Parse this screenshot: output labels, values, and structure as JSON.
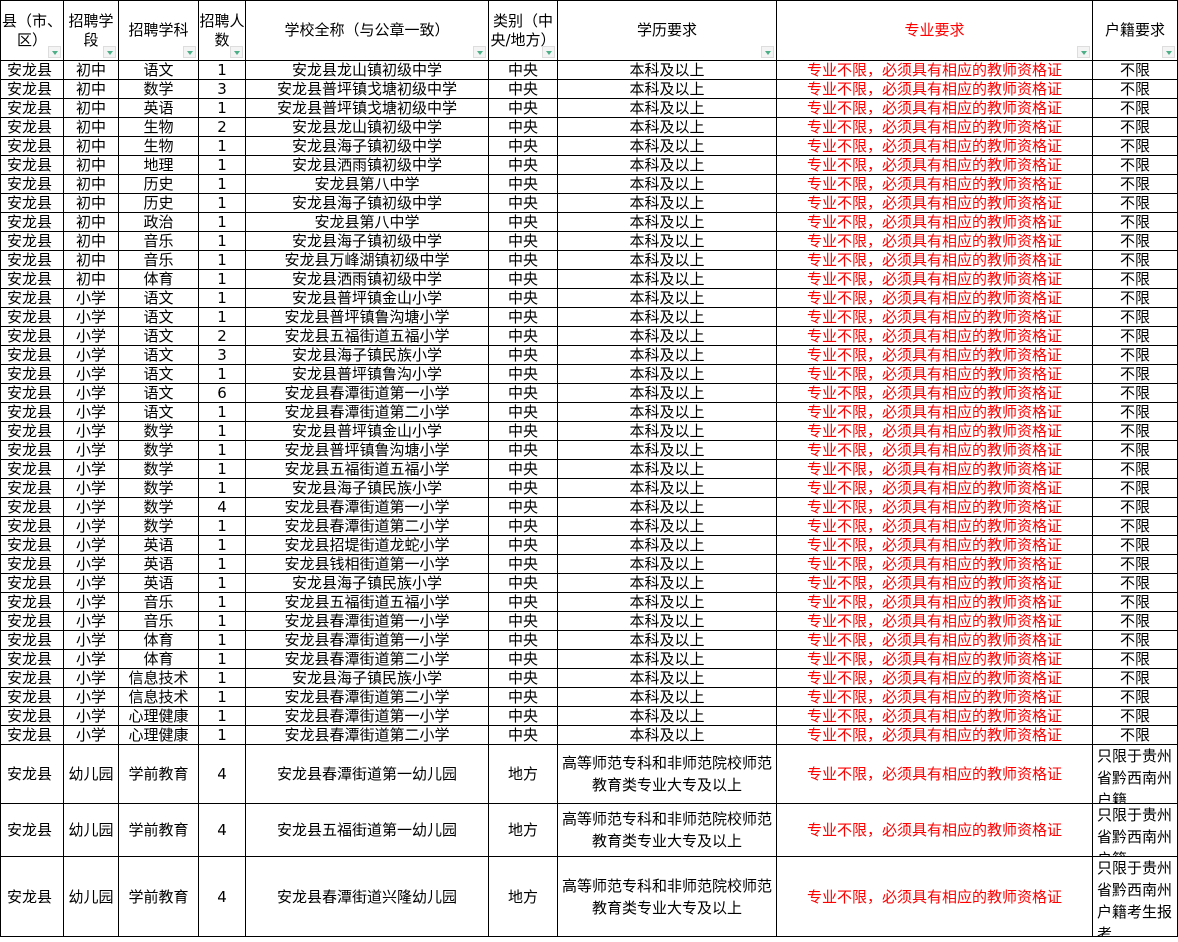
{
  "headers": [
    "县（市、区）",
    "招聘学段",
    "招聘学科",
    "招聘人数",
    "学校全称（与公章一致）",
    "类别（中央/地方）",
    "学历要求",
    "专业要求",
    "户籍要求"
  ],
  "colors": {
    "major_text": "#ff0000",
    "filter_arrow": "#4caf88"
  },
  "defaults": {
    "county": "安龙县",
    "category_central": "中央",
    "education": "本科及以上",
    "major": "专业不限，必须具有相应的教师资格证",
    "hukou": "不限"
  },
  "rows": [
    [
      "初中",
      "语文",
      "1",
      "安龙县龙山镇初级中学"
    ],
    [
      "初中",
      "数学",
      "3",
      "安龙县普坪镇戈塘初级中学"
    ],
    [
      "初中",
      "英语",
      "1",
      "安龙县普坪镇戈塘初级中学"
    ],
    [
      "初中",
      "生物",
      "2",
      "安龙县龙山镇初级中学"
    ],
    [
      "初中",
      "生物",
      "1",
      "安龙县海子镇初级中学"
    ],
    [
      "初中",
      "地理",
      "1",
      "安龙县洒雨镇初级中学"
    ],
    [
      "初中",
      "历史",
      "1",
      "安龙县第八中学"
    ],
    [
      "初中",
      "历史",
      "1",
      "安龙县海子镇初级中学"
    ],
    [
      "初中",
      "政治",
      "1",
      "安龙县第八中学"
    ],
    [
      "初中",
      "音乐",
      "1",
      "安龙县海子镇初级中学"
    ],
    [
      "初中",
      "音乐",
      "1",
      "安龙县万峰湖镇初级中学"
    ],
    [
      "初中",
      "体育",
      "1",
      "安龙县洒雨镇初级中学"
    ],
    [
      "小学",
      "语文",
      "1",
      "安龙县普坪镇金山小学"
    ],
    [
      "小学",
      "语文",
      "1",
      "安龙县普坪镇鲁沟塘小学"
    ],
    [
      "小学",
      "语文",
      "2",
      "安龙县五福街道五福小学"
    ],
    [
      "小学",
      "语文",
      "3",
      "安龙县海子镇民族小学"
    ],
    [
      "小学",
      "语文",
      "1",
      "安龙县普坪镇鲁沟小学"
    ],
    [
      "小学",
      "语文",
      "6",
      "安龙县春潭街道第一小学"
    ],
    [
      "小学",
      "语文",
      "1",
      "安龙县春潭街道第二小学"
    ],
    [
      "小学",
      "数学",
      "1",
      "安龙县普坪镇金山小学"
    ],
    [
      "小学",
      "数学",
      "1",
      "安龙县普坪镇鲁沟塘小学"
    ],
    [
      "小学",
      "数学",
      "1",
      "安龙县五福街道五福小学"
    ],
    [
      "小学",
      "数学",
      "1",
      "安龙县海子镇民族小学"
    ],
    [
      "小学",
      "数学",
      "4",
      "安龙县春潭街道第一小学"
    ],
    [
      "小学",
      "数学",
      "1",
      "安龙县春潭街道第二小学"
    ],
    [
      "小学",
      "英语",
      "1",
      "安龙县招堤街道龙蛇小学"
    ],
    [
      "小学",
      "英语",
      "1",
      "安龙县钱相街道第一小学"
    ],
    [
      "小学",
      "英语",
      "1",
      "安龙县海子镇民族小学"
    ],
    [
      "小学",
      "音乐",
      "1",
      "安龙县五福街道五福小学"
    ],
    [
      "小学",
      "音乐",
      "1",
      "安龙县春潭街道第一小学"
    ],
    [
      "小学",
      "体育",
      "1",
      "安龙县春潭街道第一小学"
    ],
    [
      "小学",
      "体育",
      "1",
      "安龙县春潭街道第二小学"
    ],
    [
      "小学",
      "信息技术",
      "1",
      "安龙县海子镇民族小学"
    ],
    [
      "小学",
      "信息技术",
      "1",
      "安龙县春潭街道第二小学"
    ],
    [
      "小学",
      "心理健康",
      "1",
      "安龙县春潭街道第一小学"
    ],
    [
      "小学",
      "心理健康",
      "1",
      "安龙县春潭街道第二小学"
    ]
  ],
  "kindergarten_rows": [
    {
      "county": "安龙县",
      "stage": "幼儿园",
      "subject": "学前教育",
      "count": "4",
      "school": "安龙县春潭街道第一幼儿园",
      "category": "地方",
      "education": "高等师范专科和非师范院校师范教育类专业大专及以上",
      "major": "专业不限，必须具有相应的教师资格证",
      "hukou": "只限于贵州省黔西南州户籍"
    },
    {
      "county": "安龙县",
      "stage": "幼儿园",
      "subject": "学前教育",
      "count": "4",
      "school": "安龙县五福街道第一幼儿园",
      "category": "地方",
      "education": "高等师范专科和非师范院校师范教育类专业大专及以上",
      "major": "专业不限，必须具有相应的教师资格证",
      "hukou": "只限于贵州省黔西南州户籍"
    },
    {
      "county": "安龙县",
      "stage": "幼儿园",
      "subject": "学前教育",
      "count": "4",
      "school": "安龙县春潭街道兴隆幼儿园",
      "category": "地方",
      "education": "高等师范专科和非师范院校师范教育类专业大专及以上",
      "major": "专业不限，必须具有相应的教师资格证",
      "hukou": "只限于贵州省黔西南州户籍考生报考"
    }
  ]
}
